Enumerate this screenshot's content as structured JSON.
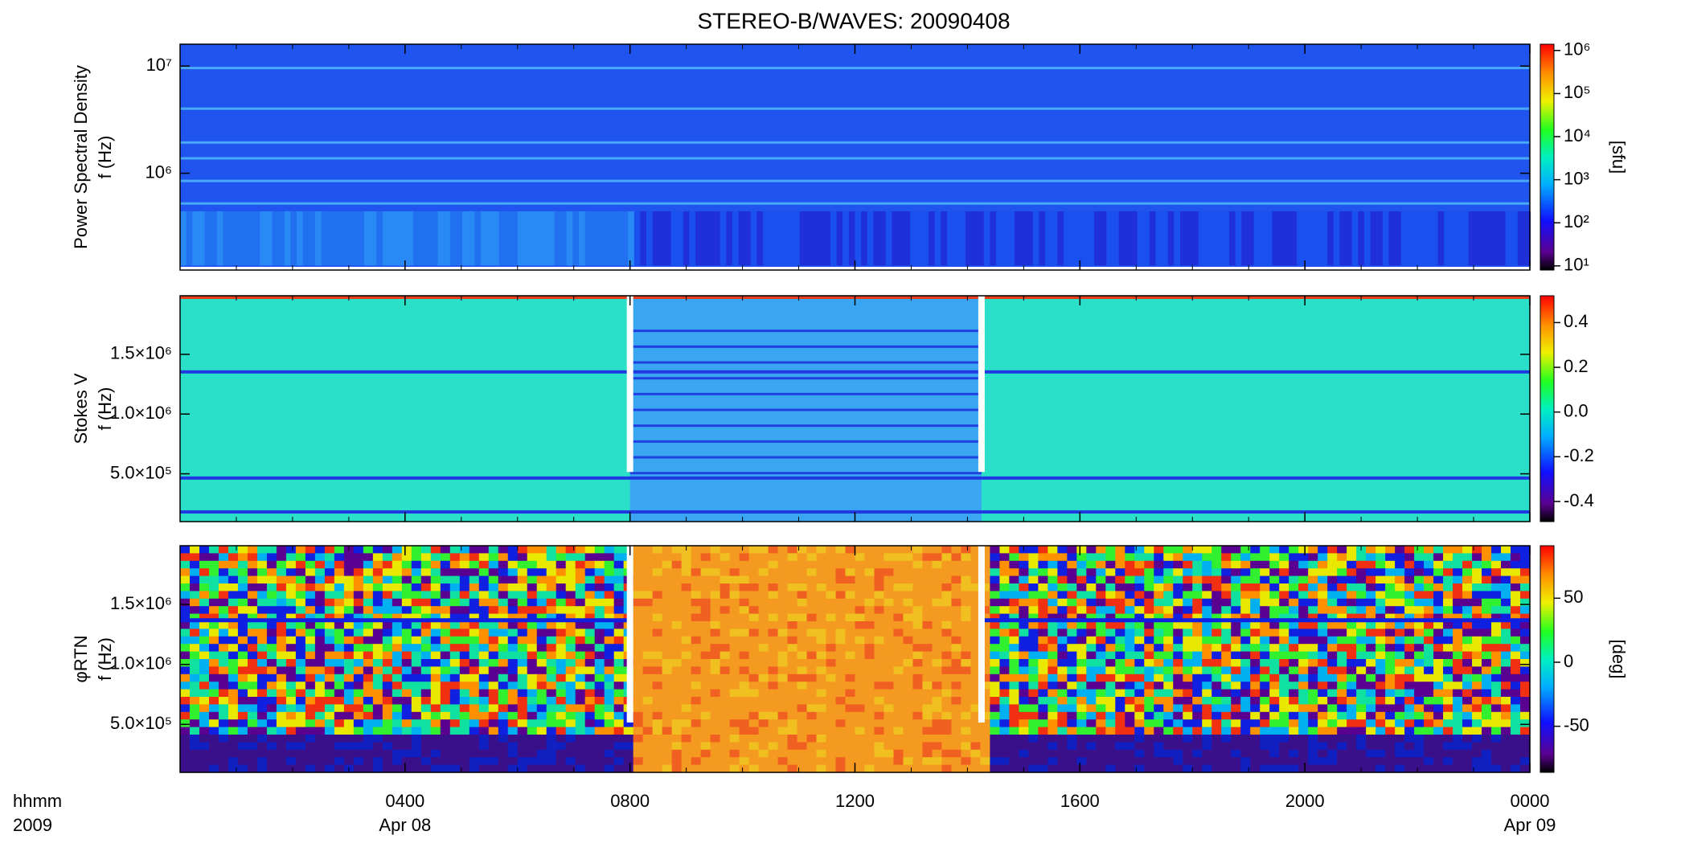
{
  "chart_data": [
    {
      "type": "heatmap",
      "title": "STEREO-B/WAVES: 20090408",
      "ylabel": [
        "Power Spectral Density",
        "f (Hz)"
      ],
      "yscale": "log",
      "ylim": [
        125000,
        16000000
      ],
      "yticks": [
        {
          "value": 1000000,
          "label": "10⁶"
        },
        {
          "value": 10000000,
          "label": "10⁷"
        }
      ],
      "xlim": [
        0,
        24
      ],
      "clabel": "[sfu]",
      "cscale": "log",
      "clim": [
        8,
        1400000
      ],
      "cticks": [
        {
          "value": 10,
          "label": "10¹"
        },
        {
          "value": 100,
          "label": "10²"
        },
        {
          "value": 1000,
          "label": "10³"
        },
        {
          "value": 10000,
          "label": "10⁴"
        },
        {
          "value": 100000,
          "label": "10⁵"
        },
        {
          "value": 1000000,
          "label": "10⁶"
        }
      ]
    },
    {
      "type": "heatmap",
      "ylabel": [
        "Stokes V",
        "f (Hz)"
      ],
      "yscale": "linear",
      "ylim": [
        100000,
        1990000
      ],
      "yticks": [
        {
          "value": 500000,
          "label": "5.0×10⁵"
        },
        {
          "value": 1000000,
          "label": "1.0×10⁶"
        },
        {
          "value": 1500000,
          "label": "1.5×10⁶"
        }
      ],
      "xlim": [
        0,
        24
      ],
      "cscale": "linear",
      "clim": [
        -0.49,
        0.52
      ],
      "cticks": [
        -0.4,
        -0.2,
        {
          "value": 0,
          "label": "0.0"
        },
        0.2,
        0.4
      ]
    },
    {
      "type": "heatmap",
      "ylabel": [
        "φRTN",
        "f (Hz)"
      ],
      "yscale": "linear",
      "ylim": [
        100000,
        1990000
      ],
      "yticks": [
        {
          "value": 500000,
          "label": "5.0×10⁵"
        },
        {
          "value": 1000000,
          "label": "1.0×10⁶"
        },
        {
          "value": 1500000,
          "label": "1.5×10⁶"
        }
      ],
      "xlim": [
        0,
        24
      ],
      "xticks": [
        {
          "value": 4,
          "label": "0400"
        },
        {
          "value": 8,
          "label": "0800"
        },
        {
          "value": 12,
          "label": "1200"
        },
        {
          "value": 16,
          "label": "1600"
        },
        {
          "value": 20,
          "label": "2000"
        },
        {
          "value": 24,
          "label": "0000"
        }
      ],
      "xdates": [
        {
          "value": 4,
          "label": "Apr 08"
        },
        {
          "value": 24,
          "label": "Apr 09"
        }
      ],
      "xunits": [
        "hhmm",
        "2009"
      ],
      "clabel": "[deg]",
      "cscale": "linear",
      "clim": [
        -86,
        91
      ],
      "cticks": [
        -50,
        0,
        50
      ]
    }
  ]
}
